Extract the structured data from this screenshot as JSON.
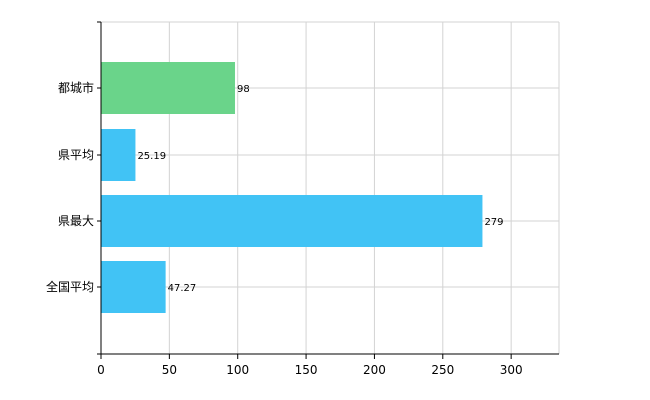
{
  "chart_data": {
    "type": "bar",
    "orientation": "horizontal",
    "categories": [
      "都城市",
      "県平均",
      "県最大",
      "全国平均"
    ],
    "values": [
      98,
      25.19,
      279,
      47.27
    ],
    "value_labels": [
      "98",
      "25.19",
      "279",
      "47.27"
    ],
    "colors": [
      "#6ad48a",
      "#41c3f5",
      "#41c3f5",
      "#41c3f5"
    ],
    "xlim": [
      0,
      335
    ],
    "xticks": [
      0,
      50,
      100,
      150,
      200,
      250,
      300
    ],
    "xtick_labels": [
      "0",
      "50",
      "100",
      "150",
      "200",
      "250",
      "300"
    ],
    "grid": true,
    "legend": "none",
    "axis_color": "#000000",
    "grid_color": "#d3d3d3"
  }
}
